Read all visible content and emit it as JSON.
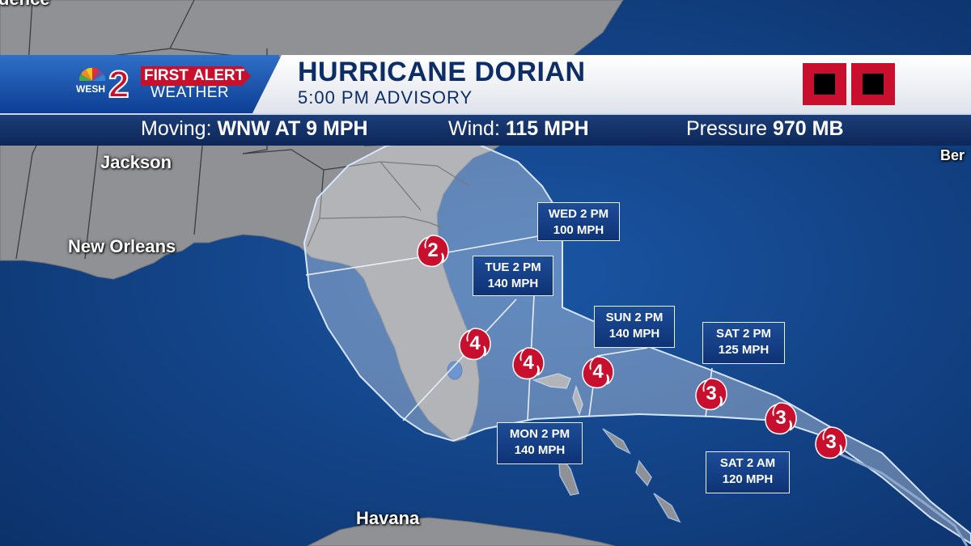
{
  "header": {
    "brand_channel": "2",
    "brand_station": "WESH",
    "first": "FIRST",
    "alert": "ALERT",
    "weather": "WEATHER",
    "storm_name": "HURRICANE DORIAN",
    "advisory": "5:00 PM ADVISORY"
  },
  "info": {
    "moving_label": "Moving:",
    "moving_value": "WNW AT 9 MPH",
    "wind_label": "Wind:",
    "wind_value": "115 MPH",
    "pressure_label": "Pressure",
    "pressure_value": "970 MB"
  },
  "cities": {
    "top": "dence",
    "jackson": "Jackson",
    "new_orleans": "New Orleans",
    "havana": "Havana",
    "bermuda": "Ber"
  },
  "forecast": [
    {
      "time": "WED 2 PM",
      "wind": "100 MPH",
      "category": "2"
    },
    {
      "time": "TUE 2 PM",
      "wind": "140 MPH",
      "category": "4"
    },
    {
      "time": "MON 2 PM",
      "wind": "140 MPH",
      "category": "4"
    },
    {
      "time": "SUN 2 PM",
      "wind": "140 MPH",
      "category": "4"
    },
    {
      "time": "SAT 2 PM",
      "wind": "125 MPH",
      "category": "3"
    },
    {
      "time": "SAT 2 AM",
      "wind": "120 MPH",
      "category": "3"
    }
  ],
  "current_category": "3",
  "colors": {
    "ocean": "#0f3e7e",
    "land": "#8e9094",
    "brand_red": "#c8102e",
    "header_blue": "#0d2d66"
  }
}
